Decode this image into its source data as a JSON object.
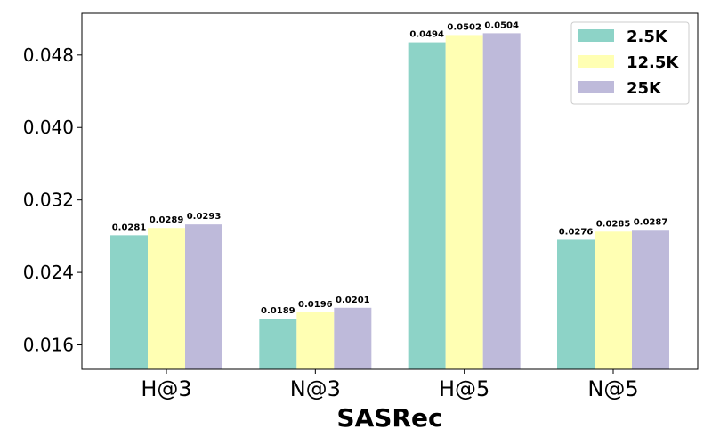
{
  "chart_data": {
    "type": "bar",
    "title": "",
    "xlabel": "SASRec",
    "ylabel": "",
    "categories": [
      "H@3",
      "N@3",
      "H@5",
      "N@5"
    ],
    "series": [
      {
        "name": "2.5K",
        "color": "#8dd3c7",
        "values": [
          0.0281,
          0.0189,
          0.0494,
          0.0276
        ],
        "labels": [
          "0.0281",
          "0.0189",
          "0.0494",
          "0.0276"
        ]
      },
      {
        "name": "12.5K",
        "color": "#ffffb3",
        "values": [
          0.0289,
          0.0196,
          0.0502,
          0.0285
        ],
        "labels": [
          "0.0289",
          "0.0196",
          "0.0502",
          "0.0285"
        ]
      },
      {
        "name": "25K",
        "color": "#bebada",
        "values": [
          0.0293,
          0.0201,
          0.0504,
          0.0287
        ],
        "labels": [
          "0.0293",
          "0.0201",
          "0.0504",
          "0.0287"
        ]
      }
    ],
    "ylim": [
      0.0133,
      0.0526
    ],
    "yticks": [
      0.016,
      0.024,
      0.032,
      0.04,
      0.048
    ],
    "ytick_labels": [
      "0.016",
      "0.024",
      "0.032",
      "0.040",
      "0.048"
    ],
    "grid": false,
    "legend_position": "top-right"
  }
}
